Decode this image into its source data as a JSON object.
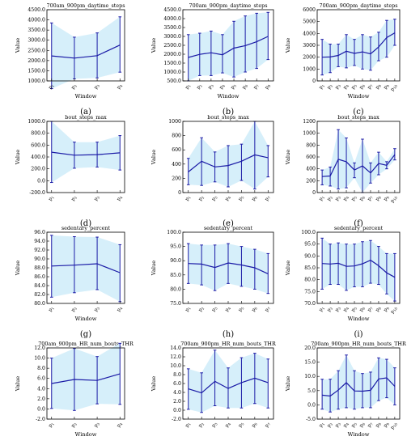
{
  "colors": {
    "line": "#1a1aa6",
    "fill": "#d6effa",
    "axis": "#000000",
    "grid": "#cccccc"
  },
  "chart_data": [
    {
      "type": "line",
      "letter": "(a)",
      "title": "700am_900pm_daytime_steps",
      "xlabel": "Window",
      "ylabel": "Value",
      "categories": [
        "$_1$",
        "$_2$",
        "$_3$",
        "$_4$"
      ],
      "ylim": [
        1000,
        4500
      ],
      "yticks": [
        1000,
        1500,
        2000,
        2500,
        3000,
        3500,
        4000,
        4500
      ],
      "ytick_labels": [
        "1000.0",
        "1500.0",
        "2000.0",
        "2500.0",
        "3000.0",
        "3500.0",
        "4000.0",
        "4500.0"
      ],
      "series": [
        {
          "mean": [
            2230,
            2120,
            2240,
            2760
          ],
          "low": [
            620,
            1100,
            1150,
            1430
          ],
          "high": [
            3850,
            3150,
            3360,
            4150
          ]
        }
      ]
    },
    {
      "type": "line",
      "letter": "(b)",
      "title": "700am_900pm_daytime_steps",
      "xlabel": "Window",
      "ylabel": "Value",
      "categories": [
        "$_1$",
        "$_2$",
        "$_3$",
        "$_4$",
        "$_5$",
        "$_6$",
        "$_7$",
        "$_8$"
      ],
      "ylim": [
        500,
        4500
      ],
      "yticks": [
        500,
        1000,
        1500,
        2000,
        2500,
        3000,
        3500,
        4000,
        4500
      ],
      "ytick_labels": [
        "500.0",
        "1000.0",
        "1500.0",
        "2000.0",
        "2500.0",
        "3000.0",
        "3500.0",
        "4000.0",
        "4500.0"
      ],
      "series": [
        {
          "mean": [
            1820,
            1990,
            2080,
            1970,
            2340,
            2480,
            2700,
            3000
          ],
          "low": [
            500,
            800,
            800,
            950,
            720,
            1000,
            1200,
            1700
          ],
          "high": [
            3100,
            3180,
            3300,
            3100,
            3850,
            4150,
            4300,
            4350
          ]
        }
      ]
    },
    {
      "type": "line",
      "letter": "(c)",
      "title": "700am_900pm_daytime_steps",
      "xlabel": "Window",
      "ylabel": "Value",
      "categories": [
        "$_1$",
        "$_2$",
        "$_3$",
        "$_4$",
        "$_5$",
        "$_6$",
        "$_7$",
        "$_8$",
        "$_9$",
        "$_{10}$"
      ],
      "ylim": [
        0,
        6000
      ],
      "yticks": [
        0,
        1000,
        2000,
        3000,
        4000,
        5000,
        6000
      ],
      "ytick_labels": [
        "0",
        "1000",
        "2000",
        "3000",
        "4000",
        "5000",
        "6000"
      ],
      "series": [
        {
          "mean": [
            2000,
            2020,
            2150,
            2500,
            2320,
            2450,
            2280,
            2860,
            3650,
            4050
          ],
          "low": [
            500,
            700,
            1200,
            1100,
            1300,
            1000,
            900,
            1700,
            2000,
            3000
          ],
          "high": [
            3500,
            3100,
            3100,
            3900,
            3500,
            3900,
            3700,
            4100,
            5100,
            5200
          ]
        }
      ]
    },
    {
      "type": "line",
      "letter": "(d)",
      "title": "bout_steps_max",
      "xlabel": "",
      "ylabel": "Value",
      "categories": [
        "$_1$",
        "$_2$",
        "$_3$",
        "$_4$"
      ],
      "ylim": [
        -200,
        1000
      ],
      "yticks": [
        -200,
        0,
        200,
        400,
        600,
        800,
        1000
      ],
      "ytick_labels": [
        "-200.0",
        "0.0",
        "200.0",
        "400.0",
        "600.0",
        "800.0",
        "1000.0"
      ],
      "series": [
        {
          "mean": [
            480,
            430,
            440,
            470
          ],
          "low": [
            -30,
            210,
            230,
            180
          ],
          "high": [
            1000,
            650,
            650,
            760
          ]
        }
      ]
    },
    {
      "type": "line",
      "letter": "(e)",
      "title": "bout_steps_max",
      "xlabel": "",
      "ylabel": "Value",
      "categories": [
        "$_1$",
        "$_2$",
        "$_3$",
        "$_4$",
        "$_5$",
        "$_6$",
        "$_7$"
      ],
      "ylim": [
        0,
        1000
      ],
      "yticks": [
        0,
        200,
        400,
        600,
        800,
        1000
      ],
      "ytick_labels": [
        "0",
        "200",
        "400",
        "600",
        "800",
        "1000"
      ],
      "series": [
        {
          "mean": [
            290,
            440,
            360,
            380,
            440,
            530,
            490
          ],
          "low": [
            110,
            100,
            150,
            80,
            170,
            50,
            220
          ],
          "high": [
            480,
            770,
            570,
            660,
            680,
            1000,
            660
          ]
        }
      ]
    },
    {
      "type": "line",
      "letter": "(f)",
      "title": "bout_steps_max",
      "xlabel": "",
      "ylabel": "Value",
      "categories": [
        "$_1$",
        "$_2$",
        "$_3$",
        "$_4$",
        "$_5$",
        "$_6$",
        "$_7$",
        "$_8$",
        "$_9$",
        "$_{10}$"
      ],
      "ylim": [
        0,
        1200
      ],
      "yticks": [
        0,
        200,
        400,
        600,
        800,
        1000,
        1200
      ],
      "ytick_labels": [
        "0",
        "200",
        "400",
        "600",
        "800",
        "1000",
        "1200"
      ],
      "series": [
        {
          "mean": [
            270,
            280,
            560,
            520,
            380,
            450,
            330,
            490,
            460,
            640
          ],
          "low": [
            130,
            110,
            60,
            80,
            250,
            0,
            160,
            300,
            400,
            550
          ],
          "high": [
            380,
            430,
            1060,
            920,
            500,
            900,
            500,
            680,
            520,
            740
          ]
        }
      ]
    },
    {
      "type": "line",
      "letter": "(g)",
      "title": "sedentary_percent",
      "xlabel": "Window",
      "ylabel": "Value",
      "categories": [
        "$_1$",
        "$_2$",
        "$_3$",
        "$_4$"
      ],
      "ylim": [
        80,
        96
      ],
      "yticks": [
        80,
        82,
        84,
        86,
        88,
        90,
        92,
        94,
        96
      ],
      "ytick_labels": [
        "80.0",
        "82.0",
        "84.0",
        "86.0",
        "88.0",
        "90.0",
        "92.0",
        "94.0",
        "96.0"
      ],
      "series": [
        {
          "mean": [
            88.4,
            88.6,
            88.9,
            86.9
          ],
          "low": [
            81.4,
            82.4,
            83.1,
            80.4
          ],
          "high": [
            95.3,
            95.0,
            94.9,
            93.2
          ]
        }
      ]
    },
    {
      "type": "line",
      "letter": "(h)",
      "title": "sedentary_percent",
      "xlabel": "",
      "ylabel": "Value",
      "categories": [
        "$_1$",
        "$_2$",
        "$_3$",
        "$_4$",
        "$_5$",
        "$_6$",
        "$_7$"
      ],
      "ylim": [
        75,
        100
      ],
      "yticks": [
        75,
        80,
        85,
        90,
        95,
        100
      ],
      "ytick_labels": [
        "75.0",
        "80.0",
        "85.0",
        "90.0",
        "95.0",
        "100.0"
      ],
      "series": [
        {
          "mean": [
            89,
            88.8,
            87.6,
            89.2,
            88.5,
            87.5,
            85.4
          ],
          "low": [
            82,
            81.5,
            79.5,
            82,
            81,
            80,
            78.5
          ],
          "high": [
            96,
            95.5,
            95.5,
            96,
            95,
            94,
            92.5
          ]
        }
      ]
    },
    {
      "type": "line",
      "letter": "(i)",
      "title": "sedentary_percent",
      "xlabel": "Window",
      "ylabel": "Value",
      "categories": [
        "$_1$",
        "$_2$",
        "$_3$",
        "$_4$",
        "$_5$",
        "$_6$",
        "$_7$",
        "$_8$",
        "$_9$",
        "$_{10}$"
      ],
      "ylim": [
        70,
        100
      ],
      "yticks": [
        70,
        75,
        80,
        85,
        90,
        95,
        100
      ],
      "ytick_labels": [
        "70.0",
        "75.0",
        "80.0",
        "85.0",
        "90.0",
        "95.0",
        "100.0"
      ],
      "series": [
        {
          "mean": [
            86.8,
            86.6,
            86.9,
            85.6,
            85.8,
            86.7,
            88.2,
            85.9,
            82.9,
            81
          ],
          "low": [
            76,
            78,
            78,
            75.5,
            77,
            77,
            78.5,
            78,
            74,
            71
          ],
          "high": [
            97.5,
            95,
            95.5,
            95,
            95,
            96,
            96.5,
            94,
            91,
            91
          ]
        }
      ]
    },
    {
      "type": "line",
      "letter": "(j)",
      "title": "700am_900pm_HR_num_bouts_THR",
      "xlabel": "Window",
      "ylabel": "Value",
      "categories": [
        "$_1$",
        "$_2$",
        "$_3$",
        "$_4$"
      ],
      "ylim": [
        -2,
        12
      ],
      "yticks": [
        -2,
        0,
        2,
        4,
        6,
        8,
        10,
        12
      ],
      "ytick_labels": [
        "-2.0",
        "0.0",
        "2.0",
        "4.0",
        "6.0",
        "8.0",
        "10.0",
        "12.0"
      ],
      "series": [
        {
          "mean": [
            5,
            5.8,
            5.6,
            6.9
          ],
          "low": [
            0.1,
            -0.3,
            1,
            0.9
          ],
          "high": [
            10,
            11.9,
            10.3,
            12.9
          ]
        }
      ]
    },
    {
      "type": "line",
      "letter": "(k)",
      "title": "700am_900pm_HR_num_bouts_THR",
      "xlabel": "",
      "ylabel": "Value",
      "categories": [
        "$_1$",
        "$_2$",
        "$_3$",
        "$_4$",
        "$_5$",
        "$_6$",
        "$_7$"
      ],
      "ylim": [
        -2,
        14
      ],
      "yticks": [
        -2,
        0,
        2,
        4,
        6,
        8,
        10,
        12,
        14
      ],
      "ytick_labels": [
        "-2.0",
        "0.0",
        "2.0",
        "4.0",
        "6.0",
        "8.0",
        "10.0",
        "12.0",
        "14.0"
      ],
      "series": [
        {
          "mean": [
            4.8,
            3.9,
            6.5,
            4.9,
            6.2,
            7.2,
            6.2
          ],
          "low": [
            0.2,
            -0.5,
            1,
            0.5,
            0.5,
            1.5,
            0.5
          ],
          "high": [
            9.3,
            8.4,
            13.5,
            9.5,
            11.8,
            12.8,
            11.5
          ]
        }
      ]
    },
    {
      "type": "line",
      "letter": "(l)",
      "title": "700am_900pm_HR_num_bouts_THR",
      "xlabel": "Window",
      "ylabel": "Value",
      "categories": [
        "$_1$",
        "$_2$",
        "$_3$",
        "$_4$",
        "$_5$",
        "$_6$",
        "$_7$",
        "$_8$",
        "$_9$",
        "$_{10}$"
      ],
      "ylim": [
        -5,
        20
      ],
      "yticks": [
        -5,
        0,
        5,
        10,
        15,
        20
      ],
      "ytick_labels": [
        "-5.0",
        "0.0",
        "5.0",
        "10.0",
        "15.0",
        "20.0"
      ],
      "series": [
        {
          "mean": [
            3.4,
            3.1,
            5.2,
            7.8,
            4.9,
            4.8,
            5.1,
            9.1,
            9.5,
            6.5
          ],
          "low": [
            -1.5,
            -2.5,
            -1.5,
            -1,
            -1.5,
            -1,
            -1,
            1.5,
            2.5,
            0
          ],
          "high": [
            9,
            9,
            12,
            17.5,
            12,
            11,
            11.5,
            16.5,
            16,
            13
          ]
        }
      ]
    }
  ]
}
